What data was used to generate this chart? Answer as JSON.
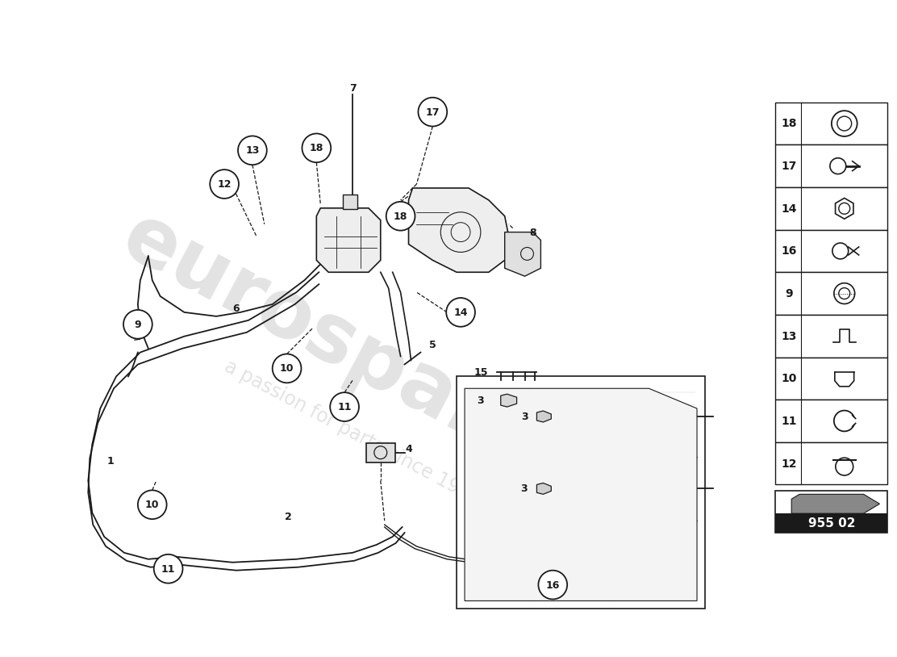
{
  "background_color": "#ffffff",
  "line_color": "#1a1a1a",
  "watermark_text1": "eurospares",
  "watermark_text2": "a passion for parts since 1985",
  "part_number_box": "955 02",
  "legend_numbers": [
    18,
    17,
    14,
    16,
    9,
    13,
    10,
    11,
    12
  ]
}
